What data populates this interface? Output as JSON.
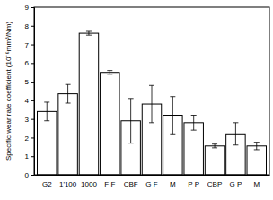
{
  "chart_data": {
    "type": "bar",
    "y_label": "Specific wear rate coefficient (10⁻⁶mm³/Nm)",
    "categories": [
      "G2",
      "1'100",
      "1000",
      "F F",
      "CBF",
      "G F",
      "M",
      "P P",
      "CBP",
      "G P",
      "M"
    ],
    "values": [
      3.4,
      4.35,
      7.6,
      5.5,
      2.9,
      3.8,
      3.2,
      2.8,
      1.55,
      2.2,
      1.55
    ],
    "errors": [
      0.5,
      0.5,
      0.1,
      0.1,
      1.2,
      1.0,
      1.0,
      0.4,
      0.1,
      0.6,
      0.2
    ],
    "color": "#ffffff",
    "ylim": [
      0,
      9
    ],
    "yticks": [
      0,
      1,
      2,
      3,
      4,
      5,
      6,
      7,
      8,
      9
    ],
    "grid": false
  }
}
